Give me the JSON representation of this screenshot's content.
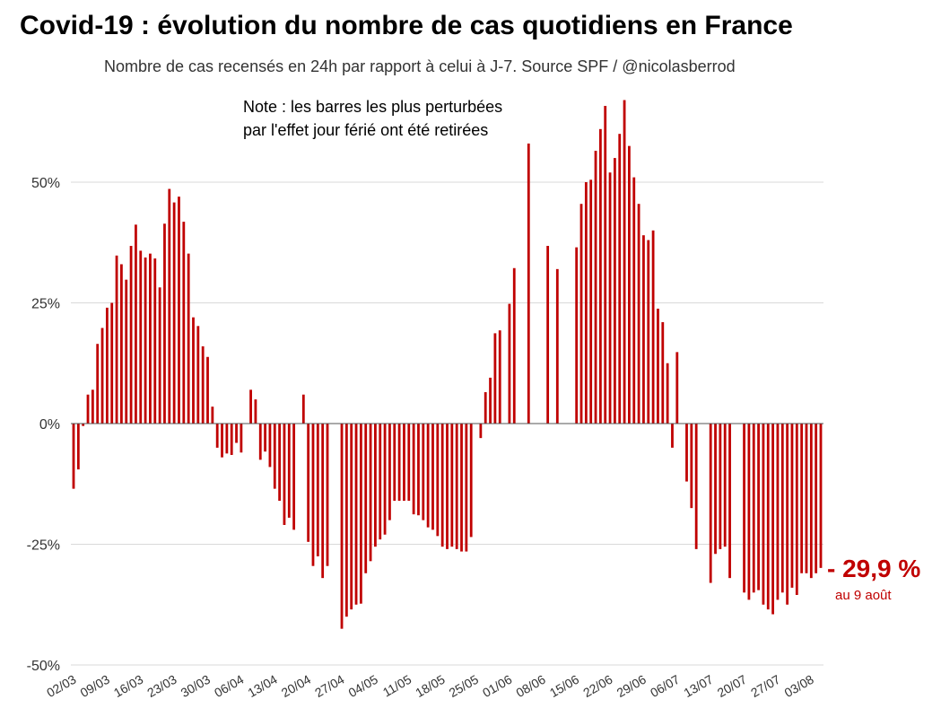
{
  "title": "Covid-19 : évolution du nombre de cas quotidiens en France",
  "subtitle": "Nombre de cas recensés en 24h par rapport à celui à J-7. Source SPF / @nicolasberrod",
  "note": [
    "Note : les barres les plus perturbées",
    "par l'effet jour férié ont été retirées"
  ],
  "annotation": {
    "value_label": "- 29,9 %",
    "date_label": "au 9 août",
    "color": "#c00000"
  },
  "colors": {
    "bar": "#c00000",
    "grid": "#d9d9d9",
    "axis": "#555555"
  },
  "chart_data": {
    "type": "bar",
    "title": "Covid-19 : évolution du nombre de cas quotidiens en France",
    "ylabel": "",
    "xlabel": "",
    "ylim": [
      -50,
      70
    ],
    "yticks": [
      50,
      25,
      0,
      -25,
      -50
    ],
    "ytick_labels": [
      "50%",
      "25%",
      "0%",
      "-25%",
      "-50%"
    ],
    "start_date": "02/03",
    "xtick_labels": [
      "02/03",
      "09/03",
      "16/03",
      "23/03",
      "30/03",
      "06/04",
      "13/04",
      "20/04",
      "27/04",
      "04/05",
      "11/05",
      "18/05",
      "25/05",
      "01/06",
      "08/06",
      "15/06",
      "22/06",
      "29/06",
      "06/07",
      "13/07",
      "20/07",
      "27/07",
      "03/08"
    ],
    "xtick_step_days": 7,
    "values": [
      -13.5,
      -9.5,
      -0.5,
      6,
      7,
      16.5,
      19.8,
      24,
      25,
      34.8,
      33,
      29.8,
      36.8,
      41.2,
      35.8,
      34.4,
      35.2,
      34.2,
      28.2,
      41.4,
      48.6,
      45.8,
      47,
      41.8,
      35.2,
      22,
      20.2,
      16,
      13.8,
      3.5,
      -5,
      -7,
      -6.2,
      -6.5,
      -4,
      -6,
      null,
      7,
      5,
      -7.5,
      -5.8,
      -9,
      -13.5,
      -16,
      -21,
      -19.5,
      -22,
      null,
      6,
      -24.5,
      -29.5,
      -27.5,
      -32,
      -29.5,
      null,
      null,
      -42.5,
      -40,
      -38.5,
      -37.5,
      -37.3,
      -31,
      -28.5,
      -25.5,
      -24,
      -23,
      -20,
      -16,
      -16,
      -16,
      -16,
      -18.8,
      -19,
      -20,
      -21.5,
      -22,
      -23.3,
      -25.5,
      -26,
      -25.5,
      -26,
      -26.5,
      -26.5,
      -23.5,
      null,
      -3,
      6.5,
      9.5,
      18.7,
      19.3,
      null,
      24.8,
      32.2,
      null,
      null,
      58,
      null,
      null,
      null,
      36.8,
      null,
      32,
      null,
      null,
      null,
      36.5,
      45.5,
      50,
      50.5,
      56.5,
      61,
      65.8,
      52,
      55,
      60,
      67,
      57.5,
      51,
      45.5,
      39,
      38,
      40,
      23.8,
      21,
      12.5,
      -5,
      14.8,
      null,
      -12,
      -17.5,
      -26,
      null,
      null,
      -33,
      -27,
      -26,
      -25.5,
      -32,
      null,
      null,
      -35,
      -36.5,
      -35,
      -34.5,
      -37.5,
      -38.5,
      -39.5,
      -36.5,
      -35,
      -37.5,
      -34,
      -35.5,
      -31,
      -31,
      -32,
      -31,
      -29.9
    ]
  }
}
